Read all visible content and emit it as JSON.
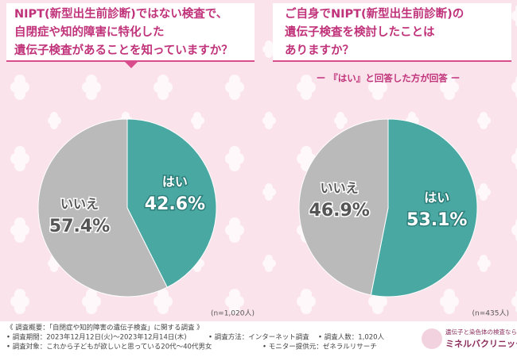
{
  "chart_data": [
    {
      "type": "pie",
      "title": [
        "NIPT(新型出生前診断)ではない検査で、",
        "自閉症や知的障害に特化した",
        "遺伝子検査があることを知っていますか？"
      ],
      "categories": [
        "はい",
        "いいえ"
      ],
      "values": [
        42.6,
        57.4
      ],
      "value_labels": [
        "42.6%",
        "57.4%"
      ],
      "colors": [
        "#4aa8a3",
        "#bababa"
      ],
      "note": "(n=1,020人)"
    },
    {
      "type": "pie",
      "title": [
        "ご自身でNIPT(新型出生前診断)の",
        "遺伝子検査を検討したことは",
        "ありますか？"
      ],
      "subtitle": "ー 『はい』と回答した方が回答 ー",
      "categories": [
        "はい",
        "いいえ"
      ],
      "values": [
        53.1,
        46.9
      ],
      "value_labels": [
        "53.1%",
        "46.9%"
      ],
      "colors": [
        "#4aa8a3",
        "#bababa"
      ],
      "note": "(n=435人)"
    }
  ],
  "footer": {
    "heading": "《 調査概要：「自閉症や知的障害の遺伝子検査」に関する調査 》",
    "items": [
      "• 調査期間：2023年12月12日(火)～2023年12月14日(木)",
      "• 調査方法：インターネット調査",
      "• 調査人数：1,020人",
      "• 調査対象：これから子どもが欲しいと思っている20代～40代男女",
      "• モニター提供元：ゼネラルリサーチ"
    ],
    "logo_tagline": "遺伝子と染色体の検査なら",
    "logo_name": "ミネルバクリニック"
  }
}
